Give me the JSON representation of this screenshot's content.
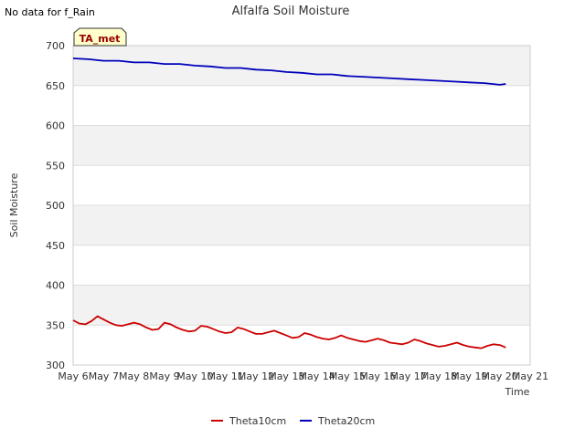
{
  "notice": "No data for f_Rain",
  "chart_data": {
    "type": "line",
    "title": "Alfalfa Soil Moisture",
    "xlabel": "Time",
    "ylabel": "Soil Moisture",
    "ylim": [
      300,
      700
    ],
    "yticks": [
      300,
      350,
      400,
      450,
      500,
      550,
      600,
      650,
      700
    ],
    "xlim": [
      6,
      21
    ],
    "xticks": [
      {
        "day": 6,
        "label": "May 6"
      },
      {
        "day": 7,
        "label": "May 7"
      },
      {
        "day": 8,
        "label": "May 8"
      },
      {
        "day": 9,
        "label": "May 9"
      },
      {
        "day": 10,
        "label": "May 10"
      },
      {
        "day": 11,
        "label": "May 11"
      },
      {
        "day": 12,
        "label": "May 12"
      },
      {
        "day": 13,
        "label": "May 13"
      },
      {
        "day": 14,
        "label": "May 14"
      },
      {
        "day": 15,
        "label": "May 15"
      },
      {
        "day": 16,
        "label": "May 16"
      },
      {
        "day": 17,
        "label": "May 17"
      },
      {
        "day": 18,
        "label": "May 18"
      },
      {
        "day": 19,
        "label": "May 19"
      },
      {
        "day": 20,
        "label": "May 20"
      },
      {
        "day": 21,
        "label": "May 21"
      }
    ],
    "annotation": "TA_met",
    "legend_position": "bottom",
    "series": [
      {
        "name": "Theta10cm",
        "color": "#cc0000",
        "x": [
          6.0,
          6.2,
          6.4,
          6.6,
          6.8,
          7.0,
          7.2,
          7.4,
          7.6,
          7.8,
          8.0,
          8.2,
          8.4,
          8.6,
          8.8,
          9.0,
          9.2,
          9.4,
          9.6,
          9.8,
          10.0,
          10.2,
          10.4,
          10.6,
          10.8,
          11.0,
          11.2,
          11.4,
          11.6,
          11.8,
          12.0,
          12.2,
          12.4,
          12.6,
          12.8,
          13.0,
          13.2,
          13.4,
          13.6,
          13.8,
          14.0,
          14.2,
          14.4,
          14.6,
          14.8,
          15.0,
          15.2,
          15.4,
          15.6,
          15.8,
          16.0,
          16.2,
          16.4,
          16.6,
          16.8,
          17.0,
          17.2,
          17.4,
          17.6,
          17.8,
          18.0,
          18.2,
          18.4,
          18.6,
          18.8,
          19.0,
          19.2,
          19.4,
          19.6,
          19.8,
          20.0,
          20.2
        ],
        "values": [
          356,
          352,
          351,
          355,
          361,
          357,
          353,
          350,
          349,
          351,
          353,
          351,
          347,
          344,
          345,
          353,
          351,
          347,
          344,
          342,
          343,
          349,
          348,
          345,
          342,
          340,
          341,
          347,
          345,
          342,
          339,
          339,
          341,
          343,
          340,
          337,
          334,
          335,
          340,
          338,
          335,
          333,
          332,
          334,
          337,
          334,
          332,
          330,
          329,
          331,
          333,
          331,
          328,
          327,
          326,
          328,
          332,
          330,
          327,
          325,
          323,
          324,
          326,
          328,
          325,
          323,
          322,
          321,
          324,
          326,
          325,
          322
        ]
      },
      {
        "name": "Theta20cm",
        "color": "#0000bb",
        "x": [
          6.0,
          6.5,
          7.0,
          7.5,
          8.0,
          8.5,
          9.0,
          9.5,
          10.0,
          10.5,
          11.0,
          11.5,
          12.0,
          12.5,
          13.0,
          13.5,
          14.0,
          14.5,
          15.0,
          15.5,
          16.0,
          16.5,
          17.0,
          17.5,
          18.0,
          18.5,
          19.0,
          19.5,
          20.0,
          20.2
        ],
        "values": [
          684,
          683,
          681,
          681,
          679,
          679,
          677,
          677,
          675,
          674,
          672,
          672,
          670,
          669,
          667,
          666,
          664,
          664,
          662,
          661,
          660,
          659,
          658,
          657,
          656,
          655,
          654,
          653,
          651,
          652
        ]
      }
    ]
  }
}
